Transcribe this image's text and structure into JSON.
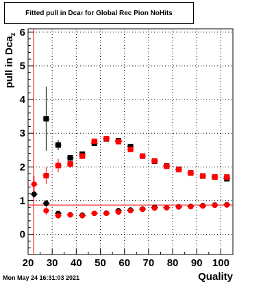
{
  "chart_data": {
    "type": "scatter",
    "title": {
      "main": "Fitted pull in Dca",
      "sub": "z",
      "rest": " for Global Rec Pion NoHits"
    },
    "ylabel": {
      "main": "pull in Dca",
      "sub": "z"
    },
    "xlabel": "Quality",
    "xlim": [
      20,
      105
    ],
    "ylim": [
      -0.6,
      6.1
    ],
    "xticks": [
      "20",
      "30",
      "40",
      "50",
      "60",
      "70",
      "80",
      "90",
      "100"
    ],
    "yticks": [
      "0",
      "1",
      "2",
      "3",
      "4",
      "5",
      "6"
    ],
    "grid": true,
    "series": [
      {
        "color": "#000000",
        "marker": "square",
        "x": [
          27.5,
          32.5,
          37.5,
          42.5,
          47.5,
          52.5,
          57.5,
          62.5,
          67.5,
          72.5,
          77.5,
          82.5,
          87.5,
          92.5,
          97.5,
          102.5
        ],
        "y": [
          3.43,
          2.65,
          2.27,
          2.38,
          2.7,
          2.83,
          2.78,
          2.6,
          2.32,
          2.17,
          2.03,
          1.93,
          1.82,
          1.73,
          1.7,
          1.65
        ],
        "err": [
          0.95,
          0.15,
          0.08,
          0.06,
          0.05,
          0.04,
          0.04,
          0.04,
          0.04,
          0.04,
          0.04,
          0.04,
          0.04,
          0.04,
          0.04,
          0.05
        ]
      },
      {
        "color": "#ff0000",
        "marker": "square",
        "x": [
          27.5,
          32.5,
          37.5,
          42.5,
          47.5,
          52.5,
          57.5,
          62.5,
          67.5,
          72.5,
          77.5,
          82.5,
          87.5,
          92.5,
          97.5,
          102.5
        ],
        "y": [
          1.74,
          2.04,
          2.09,
          2.32,
          2.76,
          2.84,
          2.75,
          2.52,
          2.32,
          2.18,
          2.02,
          1.92,
          1.82,
          1.73,
          1.7,
          1.7
        ],
        "err": [
          0.25,
          0.2,
          0.12,
          0.08,
          0.05,
          0.04,
          0.04,
          0.04,
          0.04,
          0.04,
          0.04,
          0.04,
          0.04,
          0.04,
          0.04,
          0.04
        ]
      },
      {
        "color": "#000000",
        "marker": "circle",
        "x": [
          22.5,
          27.5,
          32.5,
          37.5,
          42.5,
          47.5,
          52.5,
          57.5,
          62.5,
          67.5,
          72.5,
          77.5,
          82.5,
          87.5,
          92.5,
          97.5,
          102.5
        ],
        "y": [
          1.19,
          0.92,
          0.62,
          0.58,
          0.57,
          0.62,
          0.63,
          0.7,
          0.72,
          0.75,
          0.8,
          0.79,
          0.82,
          0.83,
          0.85,
          0.87,
          0.88
        ],
        "err": [
          0.1,
          0.1,
          0.06,
          0.05,
          0.04,
          0.03,
          0.03,
          0.03,
          0.03,
          0.03,
          0.03,
          0.03,
          0.03,
          0.03,
          0.03,
          0.03,
          0.03
        ]
      },
      {
        "color": "#ff0000",
        "marker": "circle",
        "x": [
          22.5,
          27.5,
          32.5,
          37.5,
          42.5,
          47.5,
          52.5,
          57.5,
          62.5,
          67.5,
          72.5,
          77.5,
          82.5,
          87.5,
          92.5,
          97.5,
          102.5
        ],
        "y": [
          1.49,
          0.7,
          0.55,
          0.58,
          0.55,
          0.62,
          0.62,
          0.66,
          0.7,
          0.74,
          0.78,
          0.79,
          0.81,
          0.82,
          0.84,
          0.86,
          0.87
        ],
        "err": [
          0.25,
          0.12,
          0.06,
          0.05,
          0.04,
          0.03,
          0.03,
          0.03,
          0.03,
          0.03,
          0.03,
          0.03,
          0.03,
          0.03,
          0.03,
          0.03,
          0.03
        ]
      }
    ]
  },
  "footer": {
    "timestamp": "Mon May 24 16:31:03 2021"
  }
}
